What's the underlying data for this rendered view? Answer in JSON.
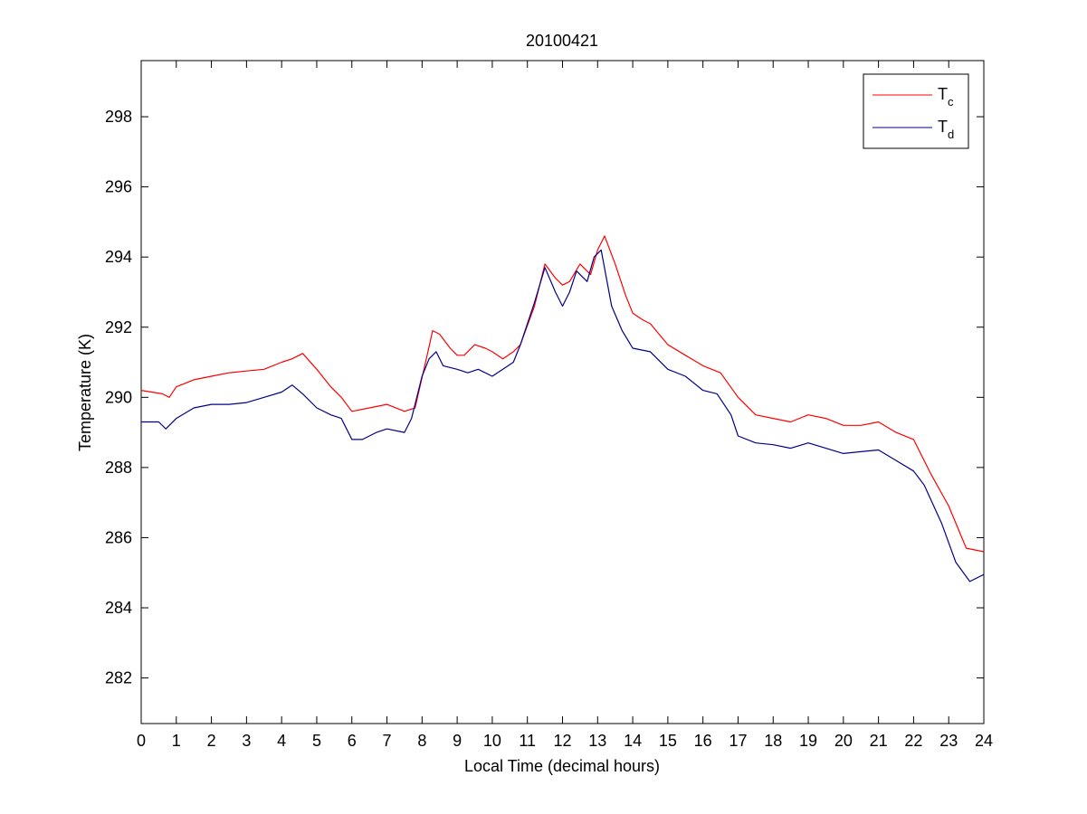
{
  "chart_data": {
    "type": "line",
    "title": "20100421",
    "xlabel": "Local Time (decimal hours)",
    "ylabel": "Temperature (K)",
    "xlim": [
      0,
      24
    ],
    "ylim": [
      280.7,
      299.6
    ],
    "xticks": [
      0,
      1,
      2,
      3,
      4,
      5,
      6,
      7,
      8,
      9,
      10,
      11,
      12,
      13,
      14,
      15,
      16,
      17,
      18,
      19,
      20,
      21,
      22,
      23,
      24
    ],
    "xtick_labels": [
      "0",
      "1",
      "2",
      "3",
      "4",
      "5",
      "6",
      "7",
      "8",
      "9",
      "10",
      "11",
      "12",
      "13",
      "14",
      "15",
      "16",
      "17",
      "18",
      "19",
      "20",
      "21",
      "22",
      "23",
      "24"
    ],
    "yticks": [
      282,
      284,
      286,
      288,
      290,
      292,
      294,
      296,
      298
    ],
    "ytick_labels": [
      "282",
      "284",
      "286",
      "288",
      "290",
      "292",
      "294",
      "296",
      "298"
    ],
    "grid": false,
    "legend_position": "top-right",
    "series": [
      {
        "name": "T",
        "subscript": "c",
        "color": "#ff0000",
        "x": [
          0,
          0.6,
          0.8,
          1,
          1.5,
          2,
          2.5,
          3,
          3.5,
          4,
          4.3,
          4.6,
          5,
          5.4,
          5.7,
          6,
          6.5,
          7,
          7.5,
          7.8,
          8.1,
          8.3,
          8.5,
          8.8,
          9,
          9.2,
          9.5,
          9.8,
          10,
          10.3,
          10.6,
          10.8,
          11.2,
          11.5,
          11.8,
          12,
          12.2,
          12.5,
          12.8,
          13,
          13.2,
          13.5,
          13.8,
          14,
          14.3,
          14.5,
          15,
          15.5,
          16,
          16.5,
          17,
          17.5,
          18,
          18.5,
          19,
          19.5,
          20,
          20.5,
          21,
          21.5,
          22,
          22.5,
          23,
          23.5,
          24
        ],
        "values": [
          290.2,
          290.1,
          290.0,
          290.3,
          290.5,
          290.6,
          290.7,
          290.75,
          290.8,
          291.0,
          291.1,
          291.25,
          290.8,
          290.3,
          290.0,
          289.6,
          289.7,
          289.8,
          289.6,
          289.7,
          291.0,
          291.9,
          291.8,
          291.4,
          291.2,
          291.2,
          291.5,
          291.4,
          291.3,
          291.1,
          291.3,
          291.5,
          292.6,
          293.8,
          293.4,
          293.2,
          293.3,
          293.8,
          293.5,
          294.2,
          294.6,
          293.8,
          292.9,
          292.4,
          292.2,
          292.1,
          291.5,
          291.2,
          290.9,
          290.7,
          290.0,
          289.5,
          289.4,
          289.3,
          289.5,
          289.4,
          289.2,
          289.2,
          289.3,
          289.0,
          288.8,
          287.8,
          286.9,
          285.7,
          285.6
        ]
      },
      {
        "name": "T",
        "subscript": "d",
        "color": "#00008b",
        "x": [
          0,
          0.5,
          0.7,
          1,
          1.5,
          2,
          2.5,
          3,
          3.5,
          4,
          4.3,
          4.6,
          5,
          5.4,
          5.7,
          6,
          6.3,
          6.7,
          7,
          7.5,
          7.7,
          8,
          8.2,
          8.4,
          8.6,
          9,
          9.3,
          9.6,
          10,
          10.3,
          10.6,
          10.8,
          11.2,
          11.5,
          11.8,
          12,
          12.2,
          12.4,
          12.7,
          12.9,
          13.1,
          13.4,
          13.7,
          14,
          14.5,
          15,
          15.5,
          16,
          16.4,
          16.8,
          17,
          17.5,
          18,
          18.5,
          19,
          19.5,
          20,
          20.5,
          21,
          21.5,
          22,
          22.3,
          22.8,
          23.2,
          23.6,
          24
        ],
        "values": [
          289.3,
          289.3,
          289.1,
          289.4,
          289.7,
          289.8,
          289.8,
          289.85,
          290.0,
          290.15,
          290.35,
          290.1,
          289.7,
          289.5,
          289.4,
          288.8,
          288.8,
          289.0,
          289.1,
          289.0,
          289.4,
          290.6,
          291.1,
          291.3,
          290.9,
          290.8,
          290.7,
          290.8,
          290.6,
          290.8,
          291.0,
          291.5,
          292.7,
          293.7,
          293.0,
          292.6,
          293.0,
          293.6,
          293.3,
          294.0,
          294.2,
          292.6,
          291.9,
          291.4,
          291.3,
          290.8,
          290.6,
          290.2,
          290.1,
          289.5,
          288.9,
          288.7,
          288.65,
          288.55,
          288.7,
          288.55,
          288.4,
          288.45,
          288.5,
          288.2,
          287.9,
          287.5,
          286.4,
          285.3,
          284.75,
          284.95
        ]
      }
    ]
  }
}
